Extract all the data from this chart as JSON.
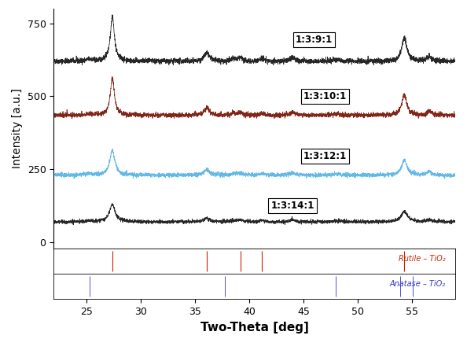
{
  "xlabel": "Two-Theta [deg]",
  "ylabel": "Intensity [a.u.]",
  "xlim": [
    22,
    59
  ],
  "ylim_main": [
    -20,
    800
  ],
  "x_ticks": [
    25,
    30,
    35,
    40,
    45,
    50,
    55
  ],
  "yticks_main": [
    0,
    250,
    500,
    750
  ],
  "labels": [
    "1:3:9:1",
    "1:3:10:1",
    "1:3:12:1",
    "1:3:14:1"
  ],
  "colors": [
    "#1a1a1a",
    "#7a1a0a",
    "#5ab4e5",
    "#1a1a1a"
  ],
  "offsets": [
    620,
    435,
    230,
    70
  ],
  "rutile_peaks": [
    27.4,
    36.1,
    39.2,
    41.2,
    54.3
  ],
  "anatase_peaks": [
    25.3,
    37.8,
    48.0,
    53.9,
    55.1
  ],
  "rutile_color": "#cc2200",
  "anatase_color": "#3333cc",
  "rutile_label": "Rutile – TiO₂",
  "anatase_label": "Anatase – TiO₂",
  "noise_seed": 42,
  "label_positions": [
    [
      46,
      695,
      "1:3:9:1"
    ],
    [
      47,
      500,
      "1:3:10:1"
    ],
    [
      47,
      295,
      "1:3:12:1"
    ],
    [
      44,
      125,
      "1:3:14:1"
    ]
  ]
}
